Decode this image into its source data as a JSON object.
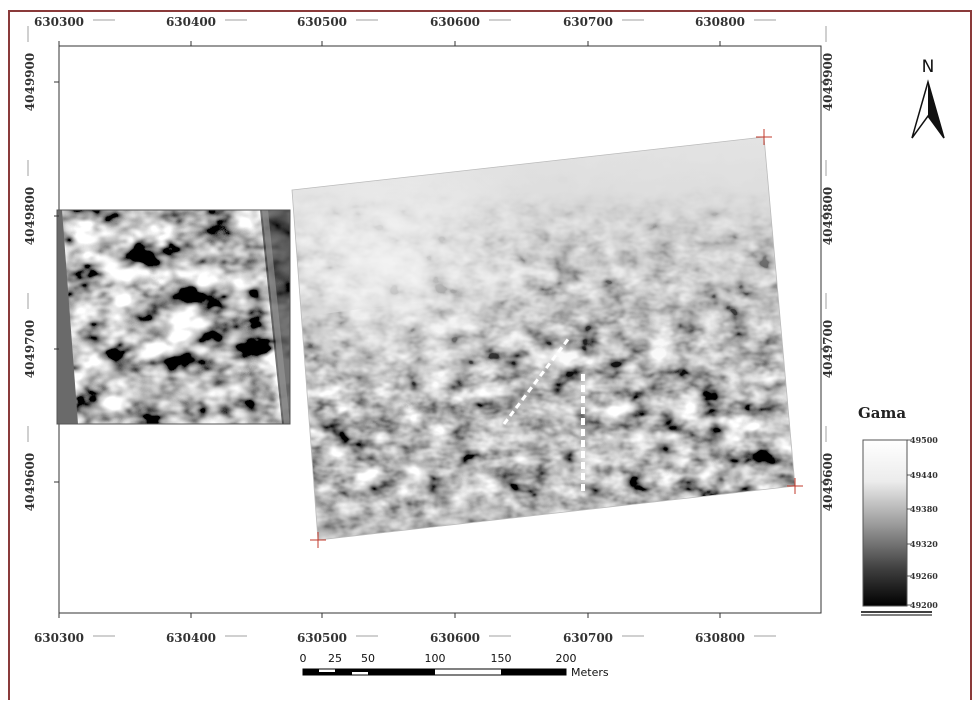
{
  "map": {
    "x_labels": [
      "630300",
      "630400",
      "630500",
      "630600",
      "630700",
      "630800"
    ],
    "y_labels": [
      "4049900",
      "4049800",
      "4049700",
      "4049600"
    ]
  },
  "north_arrow": {
    "label": "N"
  },
  "legend": {
    "title": "Gama",
    "labels": [
      "49500",
      "49440",
      "49380",
      "49320",
      "49260",
      "49200"
    ]
  },
  "scale_bar": {
    "labels": [
      "0",
      "25",
      "50",
      "100",
      "150",
      "200"
    ],
    "unit": "Meters"
  },
  "colors": {
    "frame": "#8a3a3a",
    "map_border": "#333333",
    "grid_tick": "#d0d0d0",
    "marker": "#c0392b"
  }
}
